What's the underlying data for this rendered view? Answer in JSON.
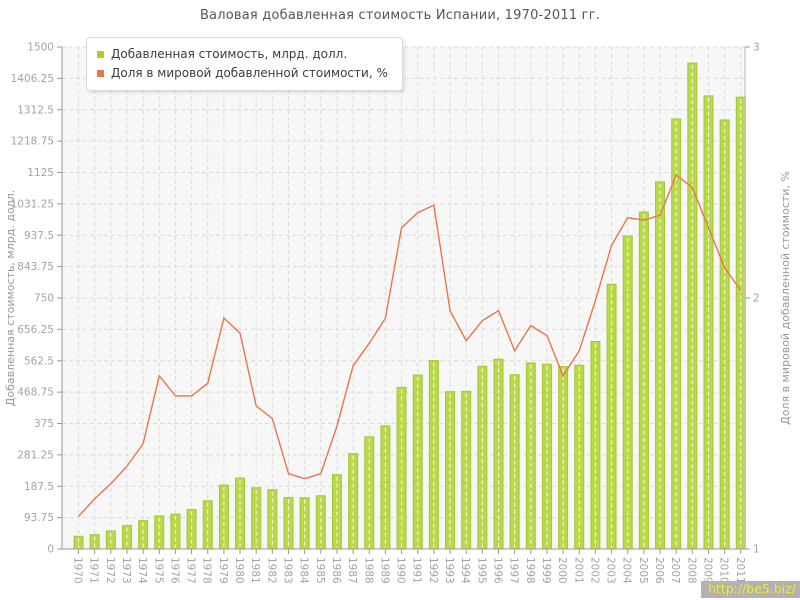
{
  "title": "Валовая добавленная стоимость Испании, 1970-2011 гг.",
  "legend": {
    "items": [
      {
        "label": "Добавленная стоимость, млрд. долл.",
        "color": "#a9d02c"
      },
      {
        "label": "Доля в мировой добавленной стоимости, %",
        "color": "#e8764c"
      }
    ]
  },
  "watermark": "http://be5.biz/",
  "colors": {
    "bar_fill": "#b9d94c",
    "bar_border": "#a2c832",
    "bar_inner_dash": "#ffffff",
    "line": "#e8764c",
    "grid": "#dcdcdc",
    "plot_bg": "#f7f7f7",
    "axis": "#999999",
    "right_axis": "#bbbbbb",
    "tick_label": "#a3a3a3",
    "axis_title": "#999999",
    "title": "#555555",
    "watermark_bg": "#b2b2b2",
    "watermark_text": "#f3ea2b"
  },
  "chart_data": {
    "type": "bar",
    "subtype": "bar+line combo, dual y-axes",
    "title": "Валовая добавленная стоимость Испании, 1970-2011 гг.",
    "grid": true,
    "legend_position": "top-left",
    "categories": [
      "1970",
      "1971",
      "1972",
      "1973",
      "1974",
      "1975",
      "1976",
      "1977",
      "1978",
      "1979",
      "1980",
      "1981",
      "1982",
      "1983",
      "1984",
      "1985",
      "1986",
      "1987",
      "1988",
      "1989",
      "1990",
      "1991",
      "1992",
      "1993",
      "1994",
      "1995",
      "1996",
      "1997",
      "1998",
      "1999",
      "2000",
      "2001",
      "2002",
      "2003",
      "2004",
      "2005",
      "2006",
      "2007",
      "2008",
      "2009",
      "2010",
      "2011"
    ],
    "series": [
      {
        "name": "Добавленная стоимость, млрд. долл.",
        "type": "bar",
        "axis": "left",
        "values": [
          38,
          43,
          54,
          70,
          85,
          99,
          104,
          118,
          144,
          191,
          212,
          183,
          177,
          154,
          153,
          159,
          222,
          285,
          335,
          368,
          483,
          520,
          563,
          470,
          471,
          546,
          567,
          521,
          556,
          552,
          545,
          549,
          620,
          791,
          935,
          1007,
          1097,
          1285,
          1452,
          1354,
          1282,
          1350
        ]
      },
      {
        "name": "Доля в мировой добавленной стоимости, %",
        "type": "line",
        "axis": "right",
        "values": [
          1.13,
          1.2,
          1.26,
          1.33,
          1.42,
          1.69,
          1.61,
          1.61,
          1.66,
          1.92,
          1.86,
          1.57,
          1.52,
          1.3,
          1.28,
          1.3,
          1.49,
          1.73,
          1.82,
          1.92,
          2.28,
          2.34,
          2.37,
          1.95,
          1.83,
          1.91,
          1.95,
          1.79,
          1.89,
          1.85,
          1.69,
          1.79,
          1.99,
          2.21,
          2.32,
          2.31,
          2.33,
          2.49,
          2.44,
          2.28,
          2.12,
          2.03
        ]
      }
    ],
    "axes": {
      "left": {
        "label": "Добавленная стоимость, млрд. долл.",
        "min": 0,
        "max": 1500,
        "ticks": [
          0,
          93.75,
          187.5,
          281.25,
          375,
          468.75,
          562.5,
          656.25,
          750,
          843.75,
          937.5,
          1031.25,
          1125,
          1218.75,
          1312.5,
          1406.25,
          1500
        ]
      },
      "right": {
        "label": "Доля в мировой добавленной стоимости, %",
        "min": 1,
        "max": 3,
        "ticks": [
          1,
          2,
          3
        ]
      }
    }
  }
}
